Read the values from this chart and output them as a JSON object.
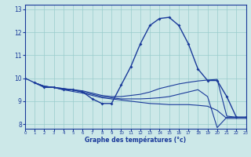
{
  "xlabel": "Graphe des températures (°c)",
  "bg_color": "#cce8e8",
  "line_color": "#1a3a9a",
  "grid_color": "#99cccc",
  "xlim": [
    0,
    23
  ],
  "ylim": [
    7.8,
    13.2
  ],
  "yticks": [
    8,
    9,
    10,
    11,
    12,
    13
  ],
  "xticks": [
    0,
    1,
    2,
    3,
    4,
    5,
    6,
    7,
    8,
    9,
    10,
    11,
    12,
    13,
    14,
    15,
    16,
    17,
    18,
    19,
    20,
    21,
    22,
    23
  ],
  "lines": [
    {
      "x": [
        0,
        1,
        2,
        3,
        4,
        5,
        6,
        7,
        8,
        9,
        10,
        11,
        12,
        13,
        14,
        15,
        16,
        17,
        18,
        19,
        20,
        21,
        22,
        23
      ],
      "y": [
        10.0,
        9.8,
        9.6,
        9.6,
        9.5,
        9.5,
        9.4,
        9.1,
        8.9,
        8.9,
        9.7,
        10.5,
        11.5,
        12.3,
        12.6,
        12.65,
        12.3,
        11.5,
        10.4,
        9.9,
        9.9,
        9.2,
        8.3,
        8.3
      ],
      "marker": true,
      "lw": 1.0
    },
    {
      "x": [
        1,
        2,
        3,
        4,
        5,
        6,
        7,
        8,
        9,
        10,
        11,
        12,
        13,
        14,
        15,
        16,
        17,
        18,
        19,
        20,
        21,
        22,
        23
      ],
      "y": [
        9.8,
        9.65,
        9.6,
        9.55,
        9.5,
        9.45,
        9.35,
        9.25,
        9.2,
        9.2,
        9.25,
        9.3,
        9.4,
        9.55,
        9.65,
        9.75,
        9.82,
        9.88,
        9.92,
        9.95,
        8.35,
        8.3,
        8.3
      ],
      "marker": false,
      "lw": 0.8
    },
    {
      "x": [
        1,
        2,
        3,
        4,
        5,
        6,
        7,
        8,
        9,
        10,
        11,
        12,
        13,
        14,
        15,
        16,
        17,
        18,
        19,
        20,
        21,
        22,
        23
      ],
      "y": [
        9.8,
        9.65,
        9.6,
        9.55,
        9.48,
        9.4,
        9.3,
        9.2,
        9.15,
        9.1,
        9.1,
        9.1,
        9.12,
        9.15,
        9.2,
        9.3,
        9.4,
        9.5,
        9.2,
        7.85,
        8.3,
        8.3,
        8.3
      ],
      "marker": false,
      "lw": 0.8
    },
    {
      "x": [
        1,
        2,
        3,
        4,
        5,
        6,
        7,
        8,
        9,
        10,
        11,
        12,
        13,
        14,
        15,
        16,
        17,
        18,
        19,
        20,
        21,
        22,
        23
      ],
      "y": [
        9.8,
        9.65,
        9.6,
        9.5,
        9.42,
        9.35,
        9.25,
        9.15,
        9.1,
        9.05,
        9.0,
        8.95,
        8.9,
        8.88,
        8.85,
        8.85,
        8.85,
        8.82,
        8.78,
        8.6,
        8.25,
        8.25,
        8.25
      ],
      "marker": false,
      "lw": 0.8
    }
  ]
}
